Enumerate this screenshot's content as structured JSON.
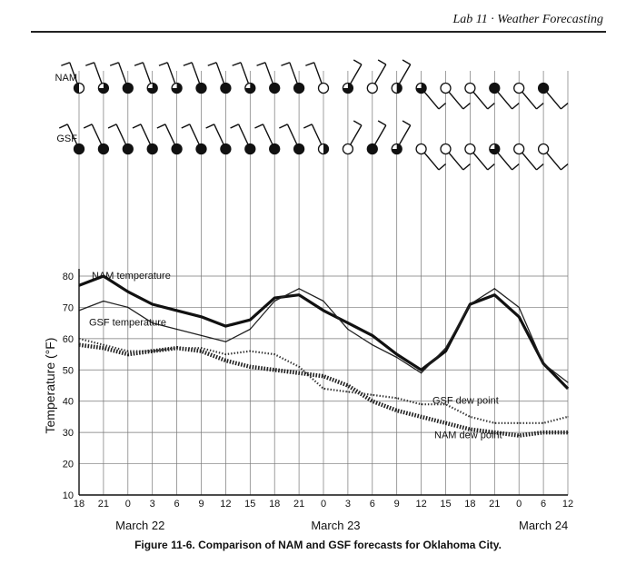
{
  "header": {
    "title": "Lab 11 · Weather Forecasting"
  },
  "caption": "Figure 11-6. Comparison of NAM and GSF forecasts for Oklahoma City.",
  "station_rows": [
    {
      "label": "NAM",
      "cover": [
        "left",
        "3q",
        "full",
        "3q",
        "3q",
        "full",
        "full",
        "3q",
        "full",
        "full",
        "clear",
        "3q",
        "clear",
        "half",
        "3q",
        "clear",
        "clear",
        "full",
        "clear",
        "full"
      ]
    },
    {
      "label": "GSF",
      "cover": [
        "full",
        "full",
        "full",
        "full",
        "full",
        "full",
        "full",
        "full",
        "full",
        "full",
        "half",
        "clear",
        "full",
        "3q",
        "clear",
        "clear",
        "clear",
        "3q",
        "clear",
        "clear"
      ]
    }
  ],
  "chart_data": {
    "type": "line",
    "categories": [
      "18",
      "21",
      "0",
      "3",
      "6",
      "9",
      "12",
      "15",
      "18",
      "21",
      "0",
      "3",
      "6",
      "9",
      "12",
      "15",
      "18",
      "21",
      "0",
      "6",
      "12"
    ],
    "date_labels": [
      "March 22",
      "March 23",
      "March 24"
    ],
    "ylabel": "Temperature (°F)",
    "ylim": [
      10,
      80
    ],
    "yticks": [
      10,
      20,
      30,
      40,
      50,
      60,
      70,
      80
    ],
    "grid": true,
    "series": [
      {
        "name": "NAM temperature",
        "style": "thick",
        "values": [
          77,
          80,
          75,
          71,
          69,
          67,
          64,
          66,
          73,
          74,
          69,
          65,
          61,
          55,
          50,
          56,
          71,
          74,
          67,
          52,
          44
        ]
      },
      {
        "name": "GSF temperature",
        "style": "thin",
        "values": [
          69,
          72,
          70,
          65,
          63,
          61,
          59,
          63,
          72,
          76,
          72,
          63,
          58,
          54,
          49,
          57,
          71,
          76,
          70,
          52,
          46
        ]
      },
      {
        "name": "NAM dew point",
        "style": "dotted-thick",
        "values": [
          58,
          57,
          55,
          56,
          57,
          56,
          53,
          51,
          50,
          49,
          48,
          45,
          40,
          37,
          35,
          33,
          31,
          30,
          29,
          30,
          30
        ]
      },
      {
        "name": "GSF dew point",
        "style": "dotted-thin",
        "values": [
          60,
          58,
          56,
          56,
          57,
          57,
          55,
          56,
          55,
          51,
          44,
          43,
          42,
          41,
          39,
          39,
          35,
          33,
          33,
          33,
          35
        ]
      }
    ]
  }
}
